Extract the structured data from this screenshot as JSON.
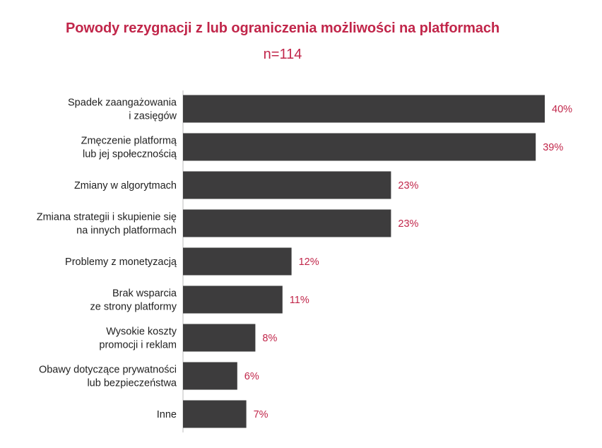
{
  "chart_data": {
    "type": "bar",
    "orientation": "horizontal",
    "title": "Powody rezygnacji z lub ograniczenia możliwości na platformach",
    "subtitle": "n=114",
    "categories": [
      [
        "Spadek zaangażowania",
        "i zasięgów"
      ],
      [
        "Zmęczenie platformą",
        "lub jej społecznością"
      ],
      [
        "Zmiany w algorytmach"
      ],
      [
        "Zmiana strategii i skupienie się",
        "na innych platformach"
      ],
      [
        "Problemy z monetyzacją"
      ],
      [
        "Brak wsparcia",
        "ze strony platformy"
      ],
      [
        "Wysokie koszty",
        "promocji i reklam"
      ],
      [
        "Obawy dotyczące prywatności",
        "lub bezpieczeństwa"
      ],
      [
        "Inne"
      ]
    ],
    "values": [
      40,
      39,
      23,
      23,
      12,
      11,
      8,
      6,
      7
    ],
    "value_labels": [
      "40%",
      "39%",
      "23%",
      "23%",
      "12%",
      "11%",
      "8%",
      "6%",
      "7%"
    ],
    "bar_color": "#3d3c3d",
    "accent_color": "#c1264a",
    "grid": false,
    "legend": "none"
  }
}
